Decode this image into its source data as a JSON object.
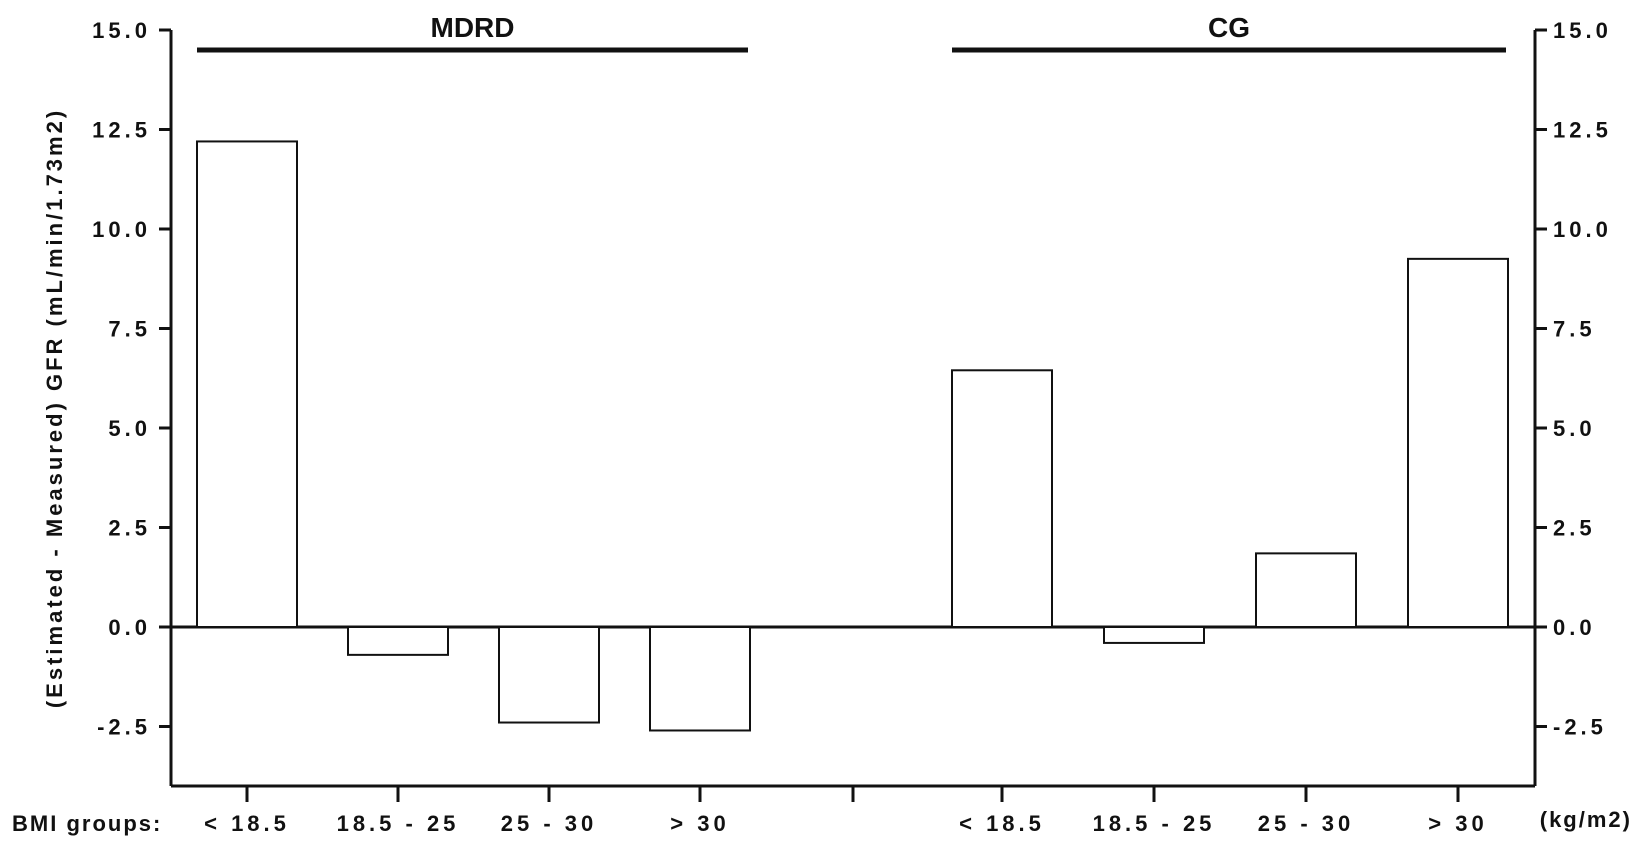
{
  "chart_data": {
    "type": "bar",
    "ylabel": "(Estimated - Measured) GFR (mL/min/1.73m2)",
    "xlabel_prefix": "BMI groups:",
    "xlabel_unit": "(kg/m2)",
    "ylim": [
      -4.0,
      15.0
    ],
    "yticks": [
      15.0,
      12.5,
      10.0,
      7.5,
      5.0,
      2.5,
      0.0,
      -2.5
    ],
    "ytick_labels": [
      "15.0",
      "12.5",
      "10.0",
      "7.5",
      "5.0",
      "2.5",
      "0.0",
      "-2.5"
    ],
    "groups": [
      {
        "name": "MDRD",
        "categories": [
          "< 18.5",
          "18.5 - 25",
          "25 - 30",
          "> 30"
        ],
        "values": [
          12.2,
          -0.7,
          -2.4,
          -2.6
        ]
      },
      {
        "name": "CG",
        "categories": [
          "< 18.5",
          "18.5 - 25",
          "25 - 30",
          "> 30"
        ],
        "values": [
          6.45,
          -0.4,
          1.85,
          9.25
        ]
      }
    ],
    "grid": false,
    "legend": "none",
    "bar_fill": "#ffffff",
    "bar_stroke": "#111111"
  }
}
